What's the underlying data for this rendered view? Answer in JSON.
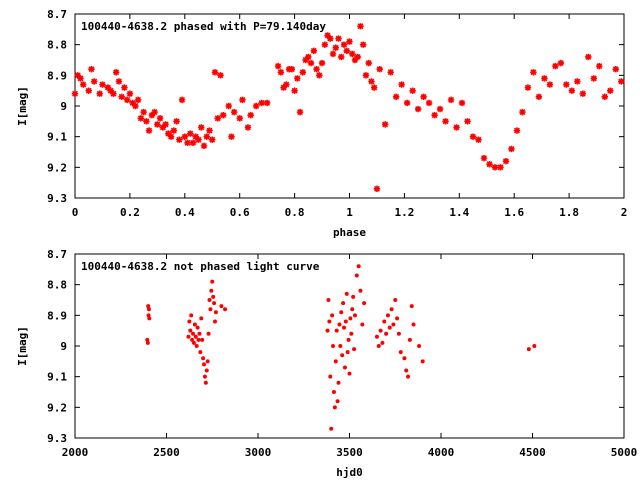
{
  "chart_data": [
    {
      "type": "scatter",
      "title": "100440-4638.2 phased with P=79.140day",
      "xlabel": "phase",
      "ylabel": "I[mag]",
      "xlim": [
        0,
        2
      ],
      "ylim": [
        9.3,
        8.7
      ],
      "y_inverted": true,
      "x_ticks": [
        0,
        0.2,
        0.4,
        0.6,
        0.8,
        1,
        1.2,
        1.4,
        1.6,
        1.8,
        2
      ],
      "x_tick_labels": [
        "0",
        "0.2",
        "0.4",
        "0.6",
        "0.8",
        "1",
        "1.2",
        "1.4",
        "1.6",
        "1.8",
        "2"
      ],
      "y_ticks": [
        8.7,
        8.8,
        8.9,
        9.0,
        9.1,
        9.2,
        9.3
      ],
      "y_tick_labels": [
        "8.7",
        "8.8",
        "8.9",
        "9",
        "9.1",
        "9.2",
        "9.3"
      ],
      "marker_color": "#ff0000",
      "series": [
        {
          "x": [
            0.0,
            0.01,
            0.02,
            0.03,
            0.05,
            0.06,
            0.07,
            0.09,
            0.1,
            0.12,
            0.13,
            0.14,
            0.15,
            0.16,
            0.17,
            0.18,
            0.19,
            0.2,
            0.21,
            0.22,
            0.23,
            0.24,
            0.25,
            0.26,
            0.27,
            0.28,
            0.29,
            0.3,
            0.31,
            0.32,
            0.33,
            0.34,
            0.35,
            0.36,
            0.37,
            0.38,
            0.39,
            0.4,
            0.41,
            0.42,
            0.43,
            0.44,
            0.45,
            0.46,
            0.47,
            0.48,
            0.49,
            0.5,
            0.51,
            0.52,
            0.53,
            0.54,
            0.56,
            0.57,
            0.58,
            0.6,
            0.61,
            0.63,
            0.64,
            0.66,
            0.68,
            0.7,
            0.74,
            0.75,
            0.76,
            0.77,
            0.78,
            0.79,
            0.8,
            0.81,
            0.82,
            0.83,
            0.84,
            0.85,
            0.86,
            0.87,
            0.88,
            0.89,
            0.9,
            0.91,
            0.92,
            0.93,
            0.94,
            0.95,
            0.96,
            0.97,
            0.98,
            0.99,
            1.0,
            1.01,
            1.02,
            1.03,
            1.04,
            1.05,
            1.06,
            1.07,
            1.08,
            1.09,
            1.1,
            1.11,
            1.13,
            1.15,
            1.17,
            1.19,
            1.21,
            1.23,
            1.25,
            1.27,
            1.29,
            1.31,
            1.33,
            1.35,
            1.37,
            1.39,
            1.41,
            1.43,
            1.45,
            1.47,
            1.49,
            1.51,
            1.53,
            1.55,
            1.57,
            1.59,
            1.61,
            1.63,
            1.65,
            1.67,
            1.69,
            1.71,
            1.73,
            1.75,
            1.77,
            1.79,
            1.81,
            1.83,
            1.85,
            1.87,
            1.89,
            1.91,
            1.93,
            1.95,
            1.97,
            1.99
          ],
          "y": [
            8.96,
            8.9,
            8.91,
            8.93,
            8.95,
            8.88,
            8.92,
            8.96,
            8.93,
            8.94,
            8.95,
            8.96,
            8.89,
            8.92,
            8.97,
            8.94,
            8.98,
            8.96,
            8.99,
            9.0,
            8.98,
            9.04,
            9.02,
            9.05,
            9.08,
            9.03,
            9.02,
            9.06,
            9.04,
            9.07,
            9.06,
            9.09,
            9.1,
            9.08,
            9.05,
            9.11,
            8.98,
            9.1,
            9.12,
            9.09,
            9.12,
            9.1,
            9.11,
            9.07,
            9.13,
            9.1,
            9.08,
            9.11,
            8.89,
            9.04,
            8.9,
            9.03,
            9.0,
            9.1,
            9.02,
            9.04,
            8.98,
            9.07,
            9.03,
            9.0,
            8.99,
            8.99,
            8.87,
            8.89,
            8.94,
            8.93,
            8.88,
            8.88,
            8.95,
            8.91,
            9.02,
            8.89,
            8.85,
            8.84,
            8.86,
            8.82,
            8.88,
            8.9,
            8.86,
            8.8,
            8.77,
            8.78,
            8.83,
            8.81,
            8.78,
            8.84,
            8.8,
            8.82,
            8.79,
            8.83,
            8.85,
            8.84,
            8.74,
            8.8,
            8.9,
            8.86,
            8.92,
            8.94,
            9.27,
            8.88,
            9.06,
            8.89,
            8.97,
            8.93,
            8.99,
            8.95,
            9.01,
            8.97,
            8.99,
            9.03,
            9.01,
            9.05,
            8.98,
            9.07,
            8.99,
            9.05,
            9.1,
            9.11,
            9.17,
            9.19,
            9.2,
            9.2,
            9.18,
            9.14,
            9.08,
            9.02,
            8.94,
            8.89,
            8.97,
            8.91,
            8.93,
            8.87,
            8.86,
            8.93,
            8.95,
            8.92,
            8.96,
            8.84,
            8.91,
            8.87,
            8.97,
            8.95,
            8.88,
            8.92
          ]
        }
      ]
    },
    {
      "type": "scatter",
      "title": "100440-4638.2 not phased light curve",
      "xlabel": "hjd0",
      "ylabel": "I[mag]",
      "xlim": [
        2000,
        5000
      ],
      "ylim": [
        9.3,
        8.7
      ],
      "y_inverted": true,
      "x_ticks": [
        2000,
        2500,
        3000,
        3500,
        4000,
        4500,
        5000
      ],
      "x_tick_labels": [
        "2000",
        "2500",
        "3000",
        "3500",
        "4000",
        "4500",
        "5000"
      ],
      "y_ticks": [
        8.7,
        8.8,
        8.9,
        9.0,
        9.1,
        9.2,
        9.3
      ],
      "y_tick_labels": [
        "8.7",
        "8.8",
        "8.9",
        "9",
        "9.1",
        "9.2",
        "9.3"
      ],
      "marker_color": "#ff0000",
      "series": [
        {
          "x": [
            2395,
            2398,
            2400,
            2402,
            2404,
            2406,
            2620,
            2625,
            2630,
            2635,
            2640,
            2645,
            2650,
            2655,
            2660,
            2665,
            2670,
            2675,
            2680,
            2685,
            2690,
            2695,
            2700,
            2705,
            2710,
            2715,
            2720,
            2725,
            2730,
            2735,
            2740,
            2745,
            2750,
            2755,
            2760,
            2765,
            2770,
            2800,
            2820,
            3380,
            3385,
            3390,
            3395,
            3400,
            3405,
            3410,
            3415,
            3420,
            3425,
            3430,
            3435,
            3440,
            3445,
            3450,
            3455,
            3460,
            3465,
            3470,
            3475,
            3480,
            3485,
            3490,
            3495,
            3500,
            3505,
            3510,
            3515,
            3520,
            3525,
            3530,
            3540,
            3550,
            3560,
            3570,
            3580,
            3650,
            3660,
            3670,
            3680,
            3690,
            3700,
            3710,
            3720,
            3730,
            3740,
            3750,
            3760,
            3770,
            3780,
            3800,
            3810,
            3820,
            3830,
            3840,
            3850,
            3880,
            3900,
            4480,
            4510
          ],
          "y": [
            8.98,
            8.99,
            8.87,
            8.9,
            8.88,
            8.91,
            8.97,
            8.92,
            8.95,
            8.9,
            8.98,
            8.96,
            8.99,
            8.93,
            8.97,
            9.0,
            8.94,
            8.98,
            8.96,
            9.02,
            8.91,
            8.98,
            9.04,
            9.06,
            9.1,
            9.12,
            9.08,
            9.05,
            8.96,
            8.85,
            8.88,
            8.82,
            8.79,
            8.84,
            8.86,
            8.92,
            8.89,
            8.87,
            8.88,
            8.95,
            8.85,
            8.92,
            9.1,
            9.27,
            8.9,
            9.0,
            9.15,
            9.2,
            9.05,
            8.95,
            9.18,
            9.12,
            8.93,
            9.0,
            8.89,
            9.03,
            8.86,
            8.94,
            9.07,
            8.92,
            8.83,
            9.02,
            8.98,
            9.09,
            8.91,
            8.96,
            8.88,
            8.84,
            9.01,
            8.9,
            8.77,
            8.74,
            8.82,
            8.93,
            8.86,
            8.97,
            9.0,
            8.95,
            8.99,
            8.92,
            8.96,
            8.9,
            8.94,
            8.88,
            8.93,
            8.85,
            8.91,
            8.96,
            9.02,
            9.04,
            9.08,
            9.1,
            8.98,
            8.87,
            8.93,
            9.0,
            9.05,
            9.01,
            9.0
          ]
        }
      ]
    }
  ]
}
